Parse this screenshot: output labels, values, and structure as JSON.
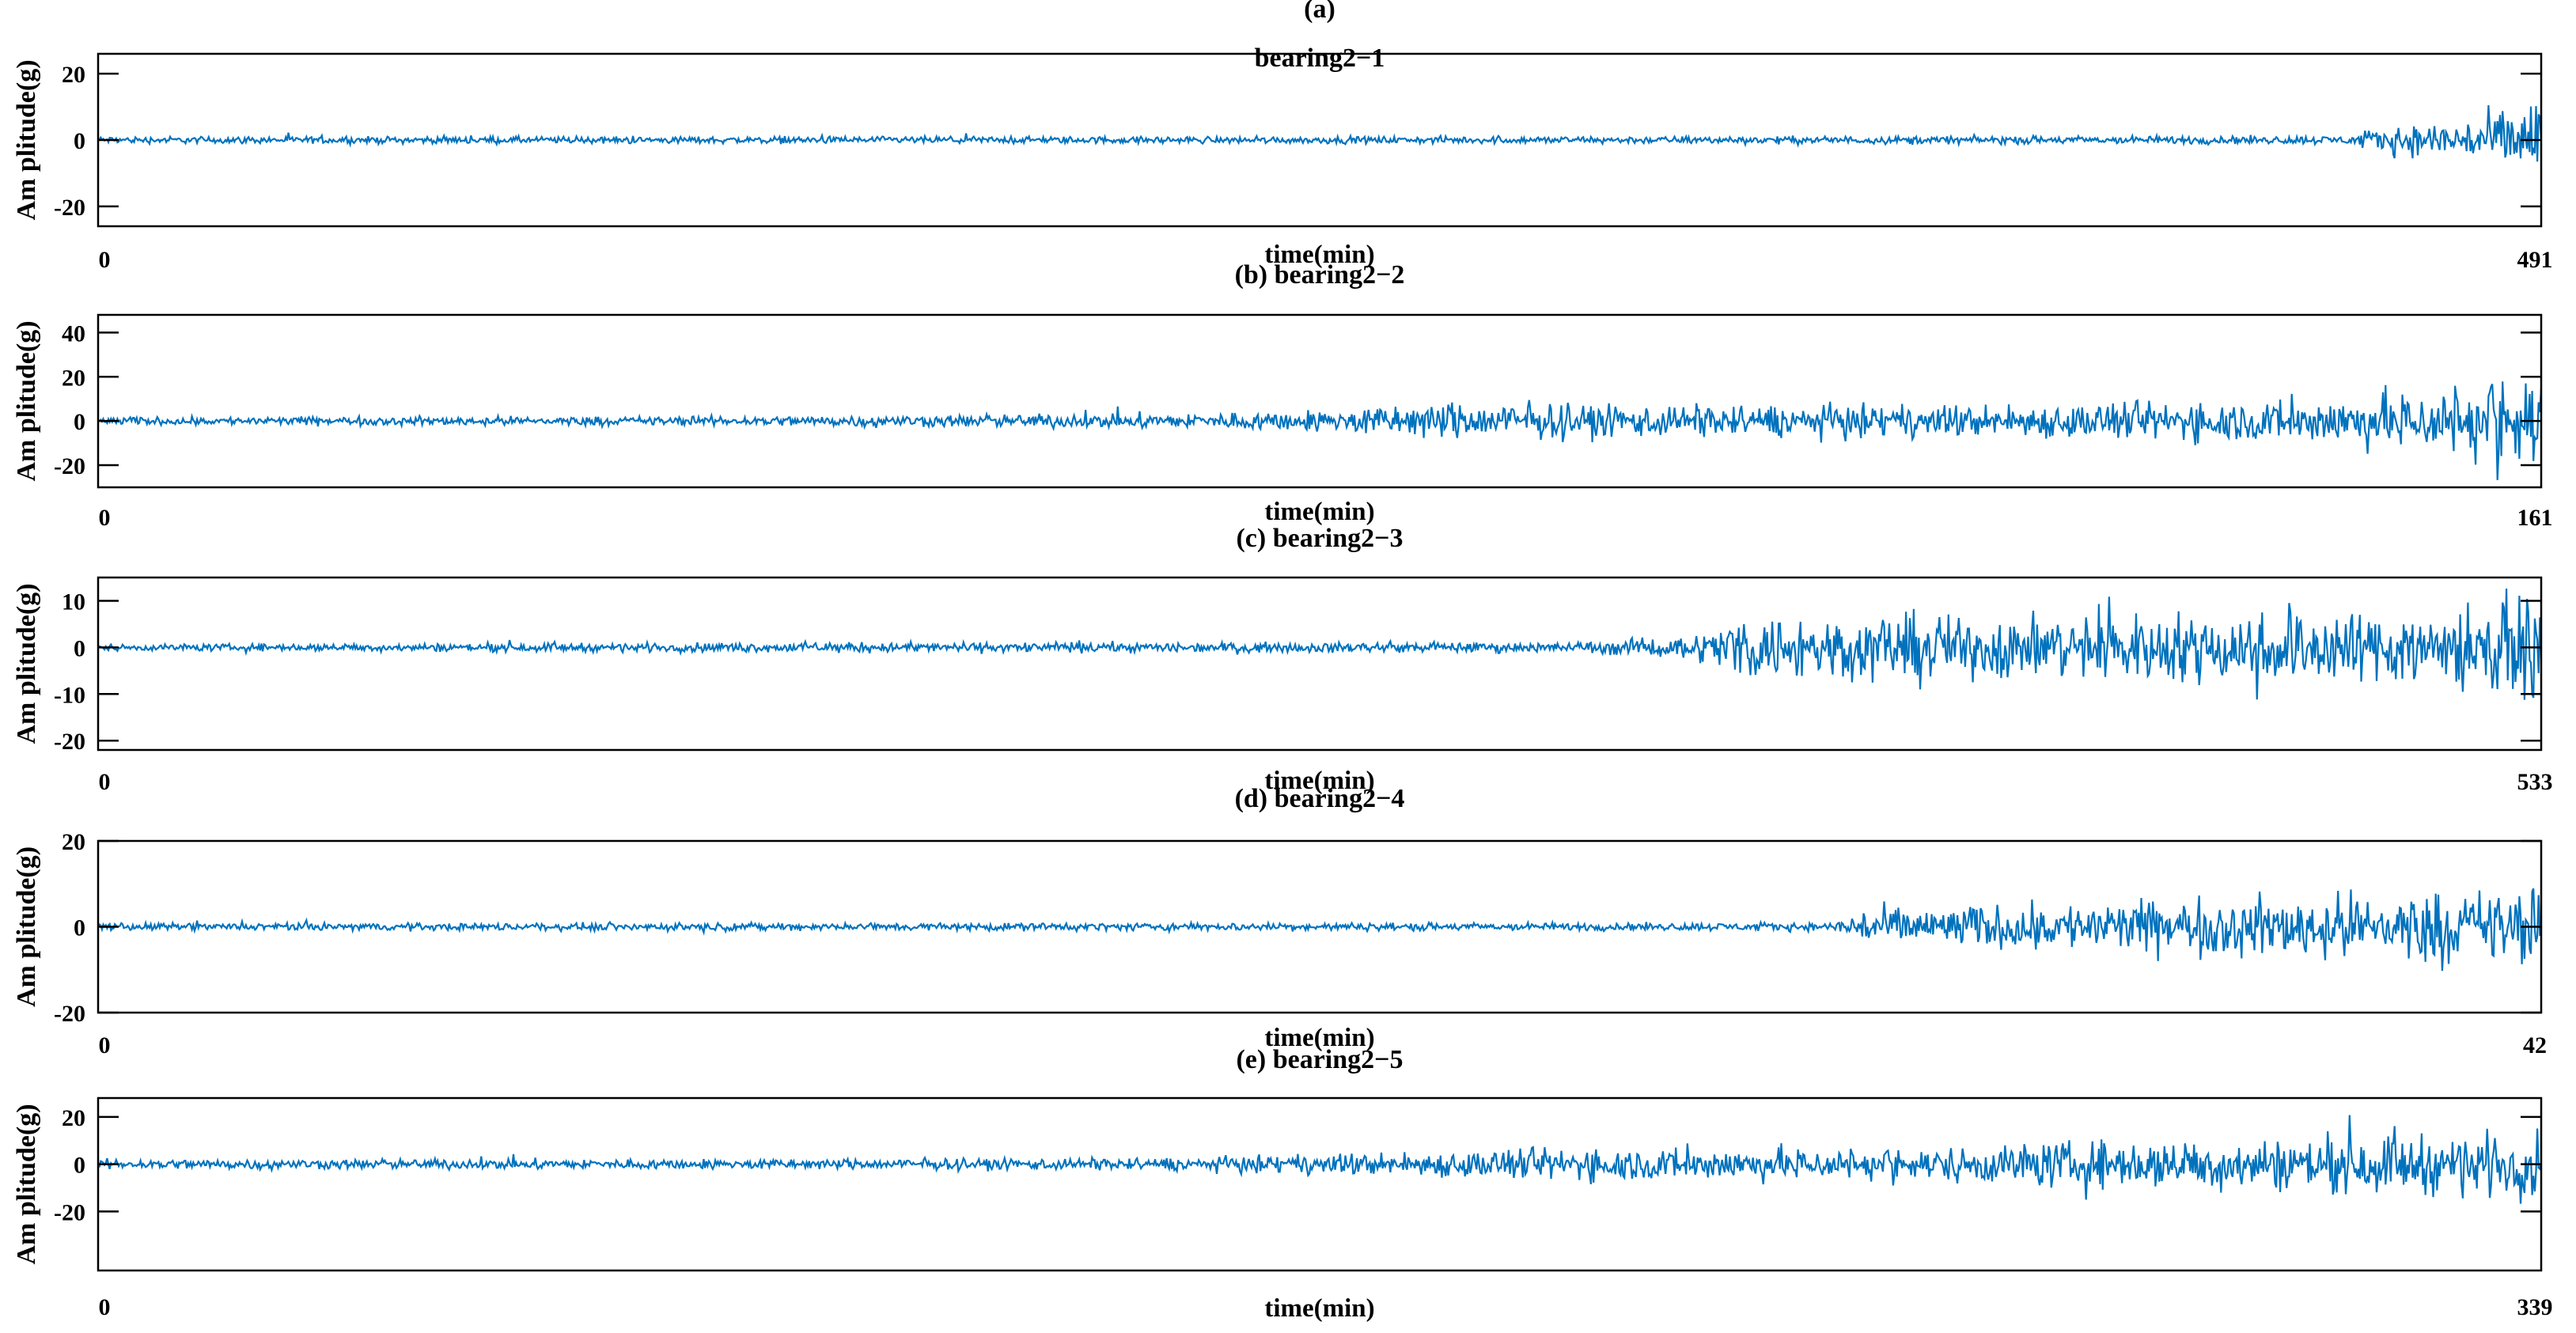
{
  "chart_data": [
    {
      "type": "line",
      "title": "(a)",
      "subtitle": "bearing2−1",
      "xlabel": "time(min)",
      "ylabel": "Am plitude(g)",
      "xlim": [
        0,
        491
      ],
      "ylim": [
        -26,
        26
      ],
      "xtick_labels": [
        "0",
        "491"
      ],
      "yticks": [
        -20,
        0,
        20
      ],
      "ytick_labels": [
        "-20",
        "0",
        "20"
      ],
      "grid": false,
      "legend": "none",
      "color": "#0072BD",
      "envelope": {
        "x": [
          0,
          0.5,
          0.92,
          0.94,
          0.97,
          0.99,
          1.0
        ],
        "amp": [
          1.5,
          1.5,
          1.8,
          6,
          9,
          14,
          26
        ]
      }
    },
    {
      "type": "line",
      "title": "(b) bearing2−2",
      "xlabel": "time(min)",
      "ylabel": "Am plitude(g)",
      "xlim": [
        0,
        161
      ],
      "ylim": [
        -30,
        48
      ],
      "xtick_labels": [
        "0",
        "161"
      ],
      "yticks": [
        -20,
        0,
        20,
        40
      ],
      "ytick_labels": [
        "-20",
        "0",
        "20",
        "40"
      ],
      "grid": false,
      "legend": "none",
      "color": "#0072BD",
      "envelope": {
        "x": [
          0,
          0.25,
          0.35,
          0.45,
          0.5,
          0.55,
          0.6,
          0.75,
          0.9,
          0.95,
          1.0
        ],
        "amp": [
          2.5,
          3,
          4,
          5,
          7,
          12,
          11,
          10,
          14,
          20,
          35
        ]
      }
    },
    {
      "type": "line",
      "title": "(c) bearing2−3",
      "xlabel": "time(min)",
      "ylabel": "Am plitude(g)",
      "xlim": [
        0,
        533
      ],
      "ylim": [
        -22,
        15
      ],
      "xtick_labels": [
        "0",
        "533"
      ],
      "yticks": [
        -20,
        -10,
        0,
        10
      ],
      "ytick_labels": [
        "-20",
        "-10",
        "0",
        "10"
      ],
      "grid": false,
      "legend": "none",
      "color": "#0072BD",
      "envelope": {
        "x": [
          0,
          0.3,
          0.6,
          0.64,
          0.66,
          0.67,
          0.8,
          0.95,
          1.0
        ],
        "amp": [
          1,
          1.5,
          1.5,
          3,
          5,
          10,
          10,
          12,
          15
        ]
      }
    },
    {
      "type": "line",
      "title": "(d) bearing2−4",
      "xlabel": "time(min)",
      "ylabel": "Am plitude(g)",
      "xlim": [
        0,
        42
      ],
      "ylim": [
        -20,
        20
      ],
      "xtick_labels": [
        "0",
        "42"
      ],
      "yticks": [
        -20,
        0,
        20
      ],
      "ytick_labels": [
        "-20",
        "0",
        "20"
      ],
      "grid": false,
      "legend": "none",
      "color": "#0072BD",
      "envelope": {
        "x": [
          0,
          0.5,
          0.71,
          0.72,
          0.85,
          1.0
        ],
        "amp": [
          1.2,
          1.3,
          1.3,
          6,
          9,
          13
        ]
      }
    },
    {
      "type": "line",
      "title": "(e) bearing2−5",
      "xlabel": "time(min)",
      "ylabel": "Am plitude(g)",
      "xlim": [
        0,
        339
      ],
      "ylim": [
        -45,
        28
      ],
      "xtick_labels": [
        "0",
        "339"
      ],
      "yticks": [
        -20,
        0,
        20
      ],
      "ytick_labels": [
        "-20",
        "0",
        "20"
      ],
      "grid": false,
      "legend": "none",
      "color": "#0072BD",
      "envelope": {
        "x": [
          0,
          0.3,
          0.45,
          0.55,
          0.6,
          0.75,
          0.8,
          0.9,
          1.0
        ],
        "amp": [
          3,
          3,
          4,
          8,
          10,
          10,
          14,
          16,
          20
        ]
      }
    }
  ]
}
